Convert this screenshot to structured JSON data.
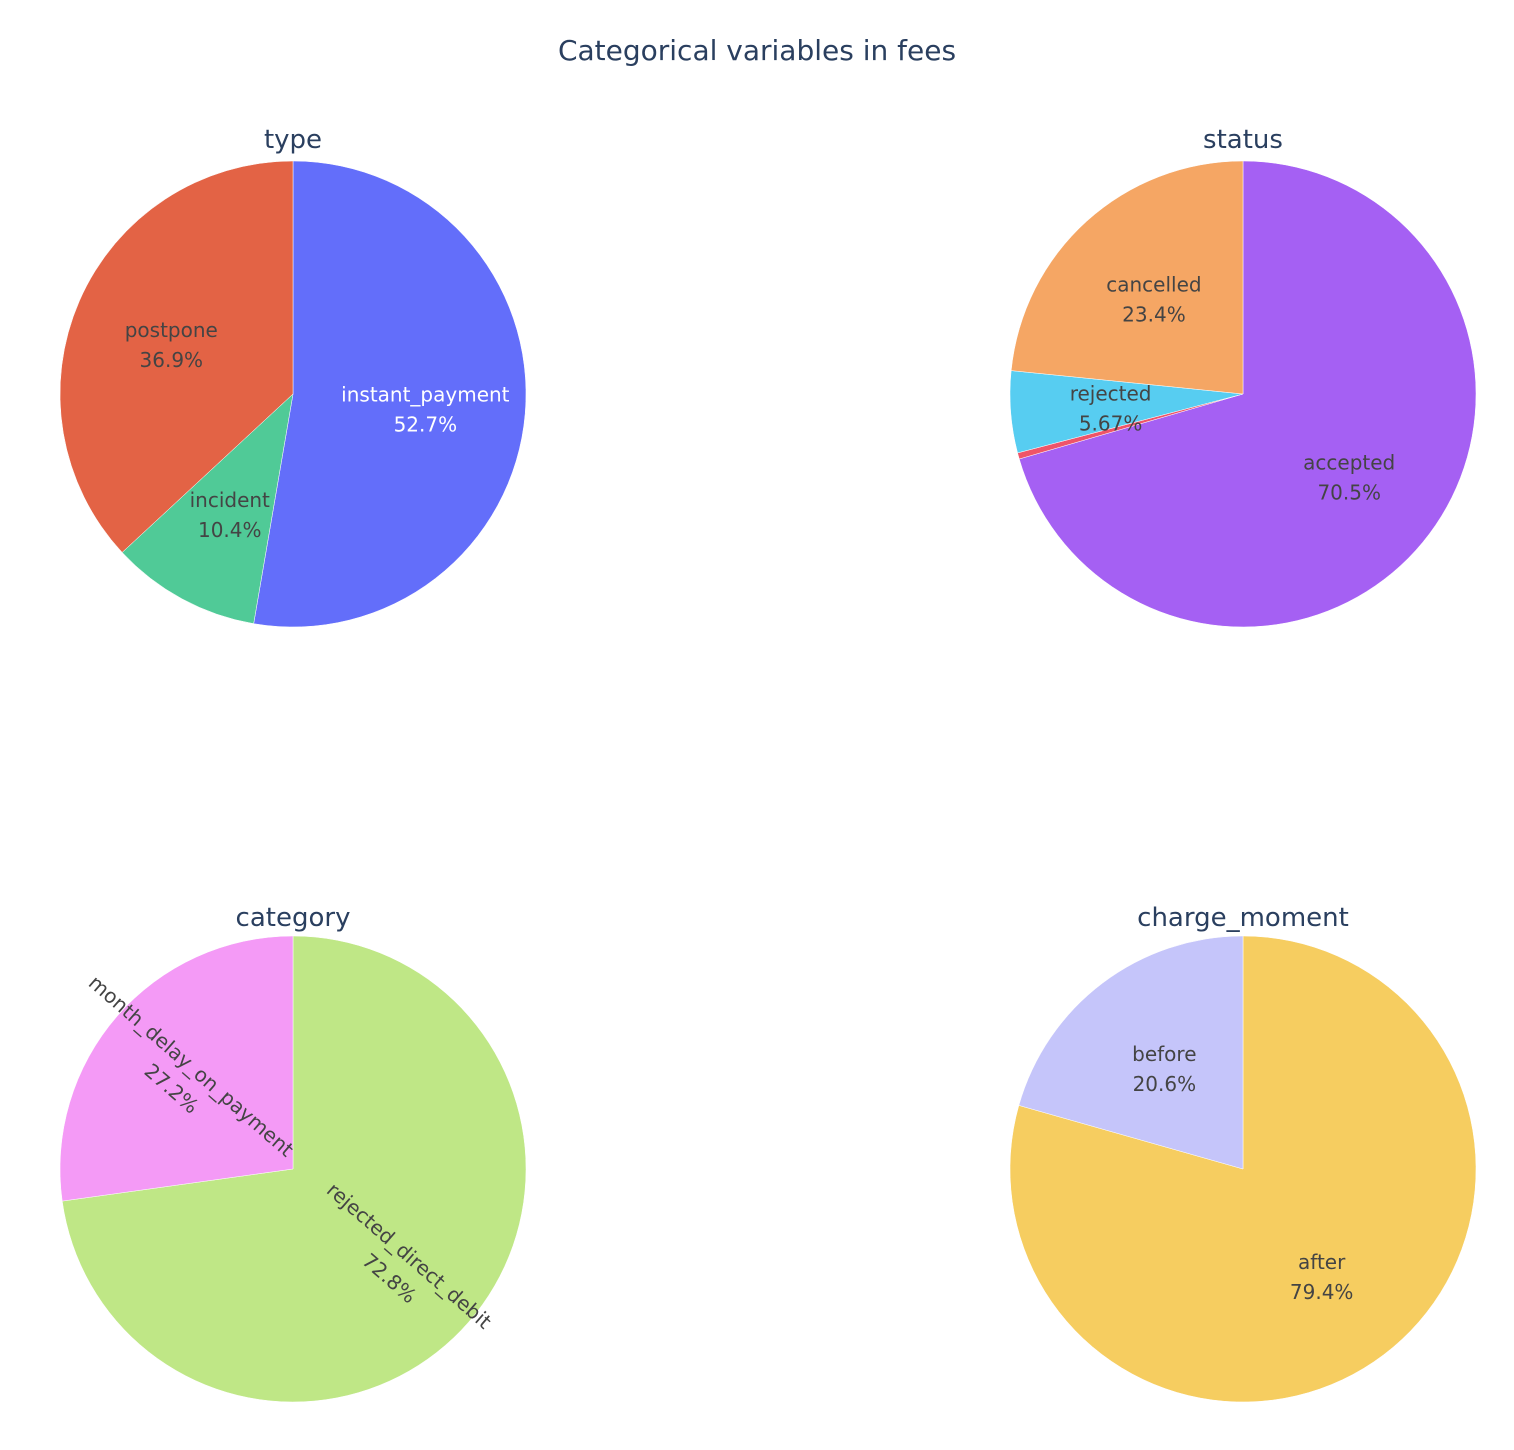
{
  "chart_title": "Categorical variables in fees",
  "chart_data": [
    {
      "type": "pie",
      "title": "type",
      "slices": [
        {
          "label": "instant_payment",
          "value": 52.7,
          "text": "52.7%",
          "color": "#636efa",
          "text_color": "#ffffff"
        },
        {
          "label": "incident",
          "value": 10.4,
          "text": "10.4%",
          "color": "#50ca97",
          "text_color": "#444444"
        },
        {
          "label": "postpone",
          "value": 36.9,
          "text": "36.9%",
          "color": "#e36345",
          "text_color": "#444444"
        }
      ]
    },
    {
      "type": "pie",
      "title": "status",
      "slices": [
        {
          "label": "accepted",
          "value": 70.5,
          "text": "70.5%",
          "color": "#a560f3",
          "text_color": "#444444"
        },
        {
          "label": "",
          "value": 0.43,
          "text": "",
          "color": "#ef5468",
          "text_color": "#444444"
        },
        {
          "label": "rejected",
          "value": 5.67,
          "text": "5.67%",
          "color": "#57cdf1",
          "text_color": "#444444"
        },
        {
          "label": "cancelled",
          "value": 23.4,
          "text": "23.4%",
          "color": "#f5a664",
          "text_color": "#444444"
        }
      ]
    },
    {
      "type": "pie",
      "title": "category",
      "slices": [
        {
          "label": "rejected_direct_debit",
          "value": 72.8,
          "text": "72.8%",
          "color": "#bfe786",
          "text_color": "#444444",
          "rotated": true
        },
        {
          "label": "month_delay_on_payment",
          "value": 27.2,
          "text": "27.2%",
          "color": "#f49af6",
          "text_color": "#444444",
          "rotated": true
        }
      ]
    },
    {
      "type": "pie",
      "title": "charge_moment",
      "slices": [
        {
          "label": "after",
          "value": 79.4,
          "text": "79.4%",
          "color": "#f6cd60",
          "text_color": "#444444"
        },
        {
          "label": "before",
          "value": 20.6,
          "text": "20.6%",
          "color": "#c5c5fa",
          "text_color": "#444444"
        }
      ]
    }
  ]
}
